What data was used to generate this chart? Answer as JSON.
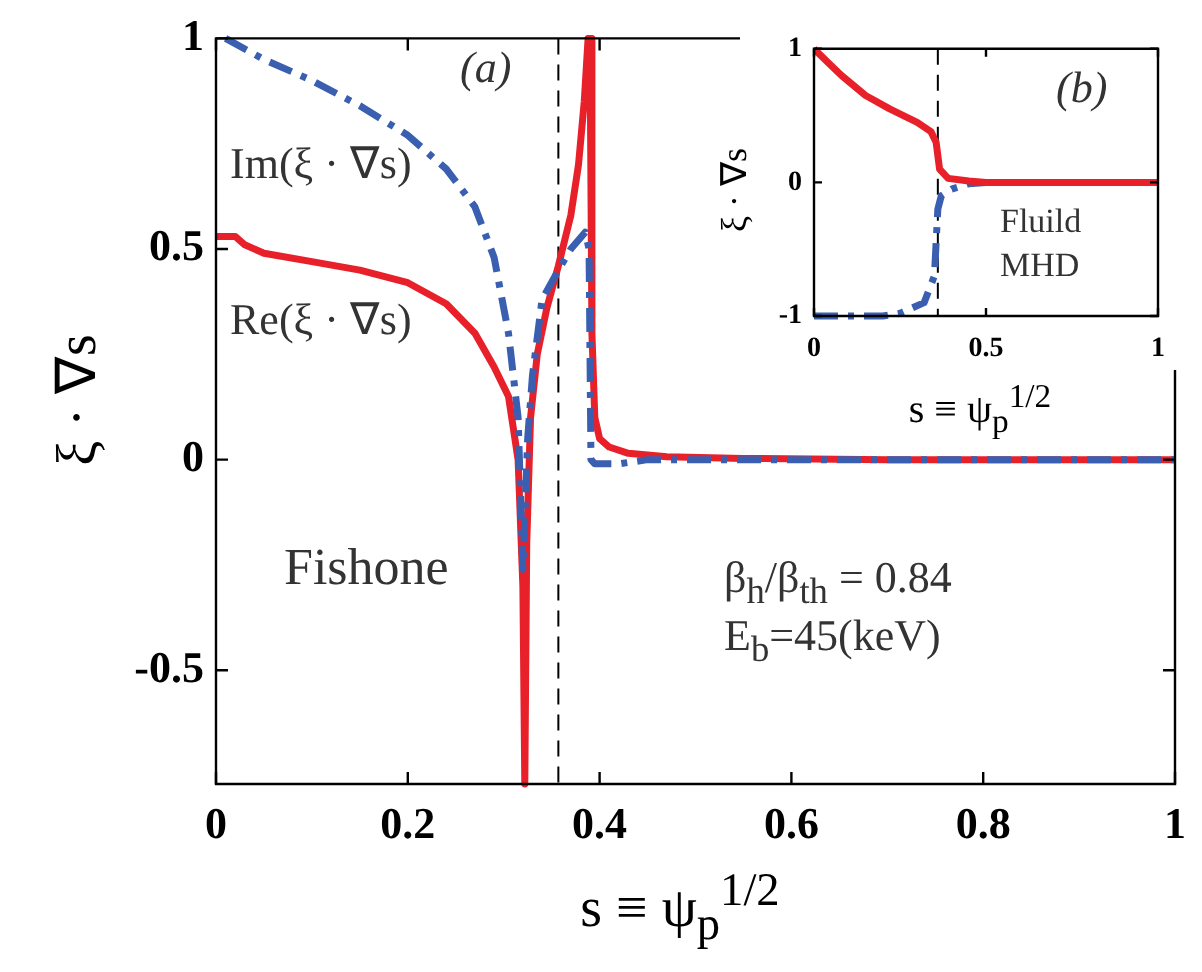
{
  "chart_data": [
    {
      "type": "line",
      "xlabel": "s ≡ ψ$_{p}$$^{1/2}$",
      "ylabel": "ξ · ∇s",
      "xlim": [
        0,
        1
      ],
      "ylim": [
        -0.77,
        1
      ],
      "xticks": [
        0,
        0.2,
        0.4,
        0.6,
        0.8,
        1
      ],
      "yticks": [
        -0.5,
        0,
        0.5,
        1
      ],
      "grid": false,
      "legend": false,
      "marker": "none",
      "annotations": [
        "(a)",
        "Fishone",
        "β$_{h}$/β$_{th}$ = 0.84",
        "E$_{b}$=45(keV)"
      ],
      "ref_lines": [
        {
          "axis": "x",
          "value": 0.357,
          "color": "#000000",
          "line_style": "dashed"
        }
      ],
      "series": [
        {
          "name": "Im(ξ · ∇s)",
          "color": "#3a5fb0",
          "line_style": "dashed",
          "x": [
            0.01,
            0.05,
            0.1,
            0.15,
            0.2,
            0.24,
            0.27,
            0.29,
            0.305,
            0.315,
            0.32,
            0.325,
            0.33,
            0.34,
            0.357,
            0.37,
            0.385,
            0.389,
            0.391,
            0.395,
            0.42,
            0.45,
            0.6,
            1
          ],
          "values": [
            1,
            0.95,
            0.9,
            0.84,
            0.77,
            0.69,
            0.6,
            0.48,
            0.3,
            0.1,
            -0.26,
            0.05,
            0.2,
            0.38,
            0.45,
            0.5,
            0.54,
            0.5,
            0,
            -0.01,
            -0.01,
            0,
            0,
            0
          ]
        },
        {
          "name": "Re(ξ · ∇s)",
          "color": "#e8202a",
          "line_style": "solid",
          "x": [
            0,
            0.02,
            0.03,
            0.05,
            0.1,
            0.15,
            0.2,
            0.24,
            0.27,
            0.29,
            0.305,
            0.315,
            0.32,
            0.322,
            0.324,
            0.328,
            0.335,
            0.345,
            0.357,
            0.37,
            0.378,
            0.384,
            0.388,
            0.39,
            0.392,
            0.395,
            0.4,
            0.41,
            0.43,
            0.47,
            0.55,
            0.7,
            1
          ],
          "values": [
            0.53,
            0.53,
            0.51,
            0.49,
            0.47,
            0.45,
            0.42,
            0.37,
            0.3,
            0.22,
            0.15,
            0,
            -0.3,
            -0.77,
            -0.2,
            0.1,
            0.25,
            0.36,
            0.46,
            0.58,
            0.7,
            0.85,
            1,
            1,
            0.3,
            0.1,
            0.05,
            0.03,
            0.015,
            0.007,
            0.003,
            0,
            0
          ]
        }
      ]
    },
    {
      "type": "line",
      "xlabel": "s ≡ ψ$_{p}$$^{1/2}$",
      "ylabel": "ξ · ∇s",
      "xlim": [
        0,
        1
      ],
      "ylim": [
        -1,
        1
      ],
      "xticks": [
        0,
        0.5,
        1
      ],
      "yticks": [
        -1,
        0,
        1
      ],
      "grid": false,
      "legend": false,
      "marker": "none",
      "annotations": [
        "(b)",
        "Fluild",
        "MHD"
      ],
      "ref_lines": [
        {
          "axis": "x",
          "value": 0.36,
          "color": "#000000",
          "line_style": "dashed"
        }
      ],
      "series": [
        {
          "color": "#e8202a",
          "line_style": "solid",
          "x": [
            0,
            0.04,
            0.08,
            0.15,
            0.22,
            0.3,
            0.34,
            0.355,
            0.365,
            0.39,
            0.45,
            0.5,
            1
          ],
          "values": [
            1,
            0.9,
            0.8,
            0.65,
            0.55,
            0.45,
            0.38,
            0.3,
            0.1,
            0.03,
            0.01,
            0,
            0
          ]
        },
        {
          "color": "#3a5fb0",
          "line_style": "dashed",
          "x": [
            0,
            0.1,
            0.2,
            0.25,
            0.32,
            0.35,
            0.36,
            0.37,
            0.4,
            0.45,
            0.5,
            1
          ],
          "values": [
            -1,
            -1,
            -1,
            -0.98,
            -0.9,
            -0.7,
            -0.2,
            -0.1,
            -0.05,
            -0.01,
            0,
            0
          ]
        }
      ]
    }
  ]
}
